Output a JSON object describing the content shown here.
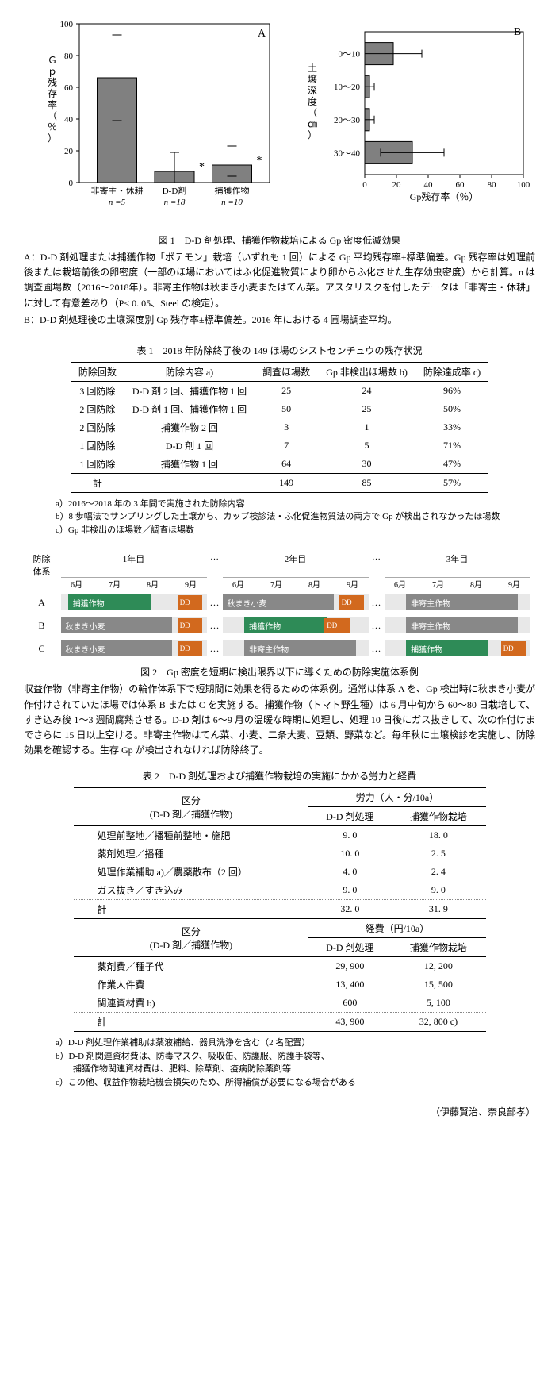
{
  "fig1": {
    "caption": "図 1　D-D 剤処理、捕獲作物栽培による Gp 密度低減効果",
    "descA": "A：D-D 剤処理または捕獲作物「ポテモン」栽培（いずれも 1 回）による Gp 平均残存率±標準偏差。Gp 残存率は処理前後または栽培前後の卵密度（一部のほ場においてはふ化促進物質により卵からふ化させた生存幼虫密度）から計算。n は調査圃場数（2016～2018年）。非寄主作物は秋まき小麦またはてん菜。アスタリスクを付したデータは「非寄主・休耕」に対して有意差あり（P< 0. 05、Steel の検定）。",
    "descB": "B：D-D 剤処理後の土壌深度別 Gp 残存率±標準偏差。2016 年における 4 圃場調査平均。"
  },
  "chartA": {
    "panel": "A",
    "ylabel": "Ｇｐ残存率（％）",
    "ylim": [
      0,
      100
    ],
    "ytick_step": 20,
    "categories": [
      "非寄主・休耕",
      "D-D剤",
      "捕獲作物"
    ],
    "n_labels": [
      "n =5",
      "n =18",
      "n =10"
    ],
    "values": [
      66,
      7,
      11
    ],
    "err_low": [
      27,
      7,
      7
    ],
    "err_high": [
      27,
      12,
      12
    ],
    "asterisk": [
      false,
      true,
      true
    ],
    "bar_color": "#808080",
    "bg": "#ffffff"
  },
  "chartB": {
    "panel": "B",
    "xlabel": "Gp残存率（％）",
    "ylabel": "土壌深度（㎝）",
    "xlim": [
      0,
      100
    ],
    "xtick_step": 20,
    "categories": [
      "0～10",
      "10～20",
      "20～30",
      "30～40"
    ],
    "values": [
      18,
      3,
      3,
      30
    ],
    "err": [
      18,
      3,
      3,
      20
    ],
    "bar_color": "#808080"
  },
  "table1": {
    "title": "表 1　2018 年防除終了後の 149 ほ場のシストセンチュウの残存状況",
    "headers": [
      "防除回数",
      "防除内容 a)",
      "調査ほ場数",
      "Gp 非検出ほ場数 b)",
      "防除達成率 c)"
    ],
    "rows": [
      [
        "3 回防除",
        "D-D 剤 2 回、捕獲作物 1 回",
        "25",
        "24",
        "96%"
      ],
      [
        "2 回防除",
        "D-D 剤 1 回、捕獲作物 1 回",
        "50",
        "25",
        "50%"
      ],
      [
        "2 回防除",
        "捕獲作物 2 回",
        "3",
        "1",
        "33%"
      ],
      [
        "1 回防除",
        "D-D 剤 1 回",
        "7",
        "5",
        "71%"
      ],
      [
        "1 回防除",
        "捕獲作物 1 回",
        "64",
        "30",
        "47%"
      ]
    ],
    "sum": [
      "計",
      "",
      "149",
      "85",
      "57%"
    ],
    "notes": [
      "a）2016～2018 年の 3 年間で実施された防除内容",
      "b）8 歩幅法でサンプリングした土壌から、カップ検診法・ふ化促進物質法の両方で Gp が検出されなかったほ場数",
      "c）Gp 非検出のほ場数／調査ほ場数"
    ]
  },
  "fig2": {
    "caption": "図 2　Gp 密度を短期に検出限界以下に導くための防除実施体系例",
    "desc": "収益作物（非寄主作物）の輪作体系下で短期間に効果を得るための体系例。通常は体系 A を、Gp 検出時に秋まき小麦が作付けされていたほ場では体系 B または C を実施する。捕獲作物（トマト野生種）は 6 月中旬から 60～80 日栽培して、すき込み後 1～3 週間腐熟させる。D-D 剤は 6～9 月の温暖な時期に処理し、処理 10 日後にガス抜きして、次の作付けまでさらに 15 日以上空ける。非寄主作物はてん菜、小麦、二条大麦、豆類、野菜など。毎年秋に土壌検診を実施し、防除効果を確認する。生存 Gp が検出されなければ防除終了。"
  },
  "sched": {
    "col_label": "防除\n体系",
    "years": [
      "1年目",
      "2年目",
      "3年目"
    ],
    "months": [
      "6月",
      "7月",
      "8月",
      "9月",
      "6月",
      "7月",
      "8月",
      "9月",
      "6月",
      "7月",
      "8月",
      "9月"
    ],
    "dots": "…",
    "rows": [
      {
        "label": "A",
        "items": [
          {
            "t": "g",
            "txt": "捕獲作物",
            "l": 5,
            "w": 50
          },
          {
            "t": "d",
            "txt": "DD",
            "l": 80,
            "w": 14
          },
          {
            "t": "w",
            "txt": "秋まき小麦",
            "l": 0,
            "w": 70,
            "y": 1
          },
          {
            "t": "d",
            "txt": "DD",
            "l": 80,
            "w": 14,
            "y": 1
          },
          {
            "t": "w",
            "txt": "非寄主作物",
            "l": 15,
            "w": 70,
            "y": 2
          }
        ]
      },
      {
        "label": "B",
        "items": [
          {
            "t": "w",
            "txt": "秋まき小麦",
            "l": 0,
            "w": 70
          },
          {
            "t": "d",
            "txt": "DD",
            "l": 80,
            "w": 14
          },
          {
            "t": "g",
            "txt": "捕獲作物",
            "l": 15,
            "w": 50,
            "y": 1
          },
          {
            "t": "d",
            "txt": "DD",
            "l": 70,
            "w": 14,
            "y": 1
          },
          {
            "t": "w",
            "txt": "非寄主作物",
            "l": 15,
            "w": 70,
            "y": 2
          }
        ]
      },
      {
        "label": "C",
        "items": [
          {
            "t": "w",
            "txt": "秋まき小麦",
            "l": 0,
            "w": 70
          },
          {
            "t": "d",
            "txt": "DD",
            "l": 80,
            "w": 14
          },
          {
            "t": "w",
            "txt": "非寄主作物",
            "l": 15,
            "w": 70,
            "y": 1
          },
          {
            "t": "g",
            "txt": "捕獲作物",
            "l": 15,
            "w": 50,
            "y": 2
          },
          {
            "t": "d",
            "txt": "DD",
            "l": 80,
            "w": 14,
            "y": 2
          }
        ]
      }
    ]
  },
  "table2": {
    "title": "表 2　D-D 剤処理および捕獲作物栽培の実施にかかる労力と経費",
    "sec1_hdr": [
      "区分\n(D-D 剤／捕獲作物)",
      "労力（人・分/10a）"
    ],
    "sub_hdr": [
      "D-D 剤処理",
      "捕獲作物栽培"
    ],
    "rows1": [
      [
        "処理前整地／播種前整地・施肥",
        "9. 0",
        "18. 0"
      ],
      [
        "薬剤処理／播種",
        "10. 0",
        "2. 5"
      ],
      [
        "処理作業補助 a)／農薬散布（2 回）",
        "4. 0",
        "2. 4"
      ],
      [
        "ガス抜き／すき込み",
        "9. 0",
        "9. 0"
      ]
    ],
    "sum1": [
      "計",
      "32. 0",
      "31. 9"
    ],
    "sec2_hdr": [
      "区分\n(D-D 剤／捕獲作物)",
      "経費（円/10a）"
    ],
    "rows2": [
      [
        "薬剤費／種子代",
        "29, 900",
        "12, 200"
      ],
      [
        "作業人件費",
        "13, 400",
        "15, 500"
      ],
      [
        "関連資材費 b)",
        "600",
        "5, 100"
      ]
    ],
    "sum2": [
      "計",
      "43, 900",
      "32, 800 c)"
    ],
    "notes": [
      "a）D-D 剤処理作業補助は薬液補給、器具洗浄を含む（2 名配置）",
      "b）D-D 剤関連資材費は、防毒マスク、吸収缶、防護服、防護手袋等、\n　　捕獲作物関連資材費は、肥料、除草剤、疫病防除薬剤等",
      "c）この他、収益作物栽培機会損失のため、所得補償が必要になる場合がある"
    ]
  },
  "author": "（伊藤賢治、奈良部孝）"
}
